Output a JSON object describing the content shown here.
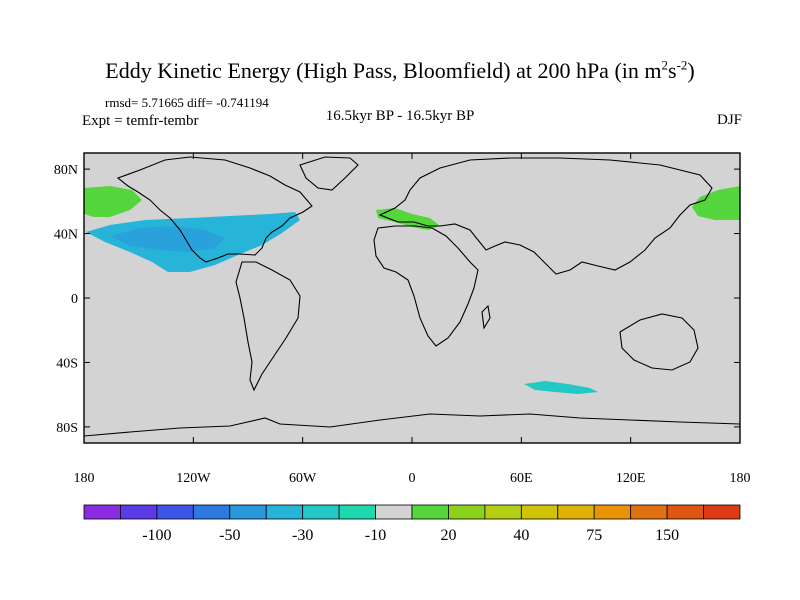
{
  "title": {
    "main": "Eddy Kinetic Energy (High Pass, Bloomfield) at 200 hPa (in m",
    "sup1": "2",
    "mid": "s",
    "sup2": "-2",
    "close": ")"
  },
  "stats": "rmsd= 5.71665 diff= -0.741194",
  "expt": "Expt = temfr-tembr",
  "center_label": "16.5kyr BP - 16.5kyr BP",
  "season": "DJF",
  "map": {
    "projection": "equirectangular",
    "lon_range": [
      -180,
      180
    ],
    "lat_range": [
      -90,
      90
    ],
    "background_color": "#d3d3d3",
    "lat_labels": [
      "80N",
      "40N",
      "0",
      "40S",
      "80S"
    ],
    "lat_values": [
      80,
      40,
      0,
      -40,
      -80
    ],
    "lon_labels": [
      "180",
      "120W",
      "60W",
      "0",
      "60E",
      "120E",
      "180"
    ],
    "lon_values": [
      -180,
      -120,
      -60,
      0,
      60,
      120,
      180
    ]
  },
  "colorbar": {
    "colors": [
      "#8a2be2",
      "#5a3be6",
      "#3d55e6",
      "#2f78e0",
      "#2a98dc",
      "#26b4d8",
      "#22c8c4",
      "#1ed8b0",
      "#d3d3d3",
      "#55d63c",
      "#8cd21c",
      "#b4ce14",
      "#d0c408",
      "#e0b004",
      "#e89404",
      "#e07010",
      "#de5612",
      "#dc3a14"
    ],
    "labels": [
      "-100",
      "-50",
      "-30",
      "-10",
      "20",
      "40",
      "75",
      "150"
    ],
    "label_after_box": [
      2,
      4,
      6,
      8,
      10,
      12,
      14,
      16
    ]
  },
  "anomaly_regions": [
    {
      "name": "north-pacific-west-green",
      "color": "#55d63c"
    },
    {
      "name": "north-pacific-east-green",
      "color": "#55d63c"
    },
    {
      "name": "north-america-cyan",
      "color": "#26b4d8"
    },
    {
      "name": "mediterranean-green",
      "color": "#55d63c"
    },
    {
      "name": "southern-ocean-cyan",
      "color": "#22c8c4"
    }
  ]
}
